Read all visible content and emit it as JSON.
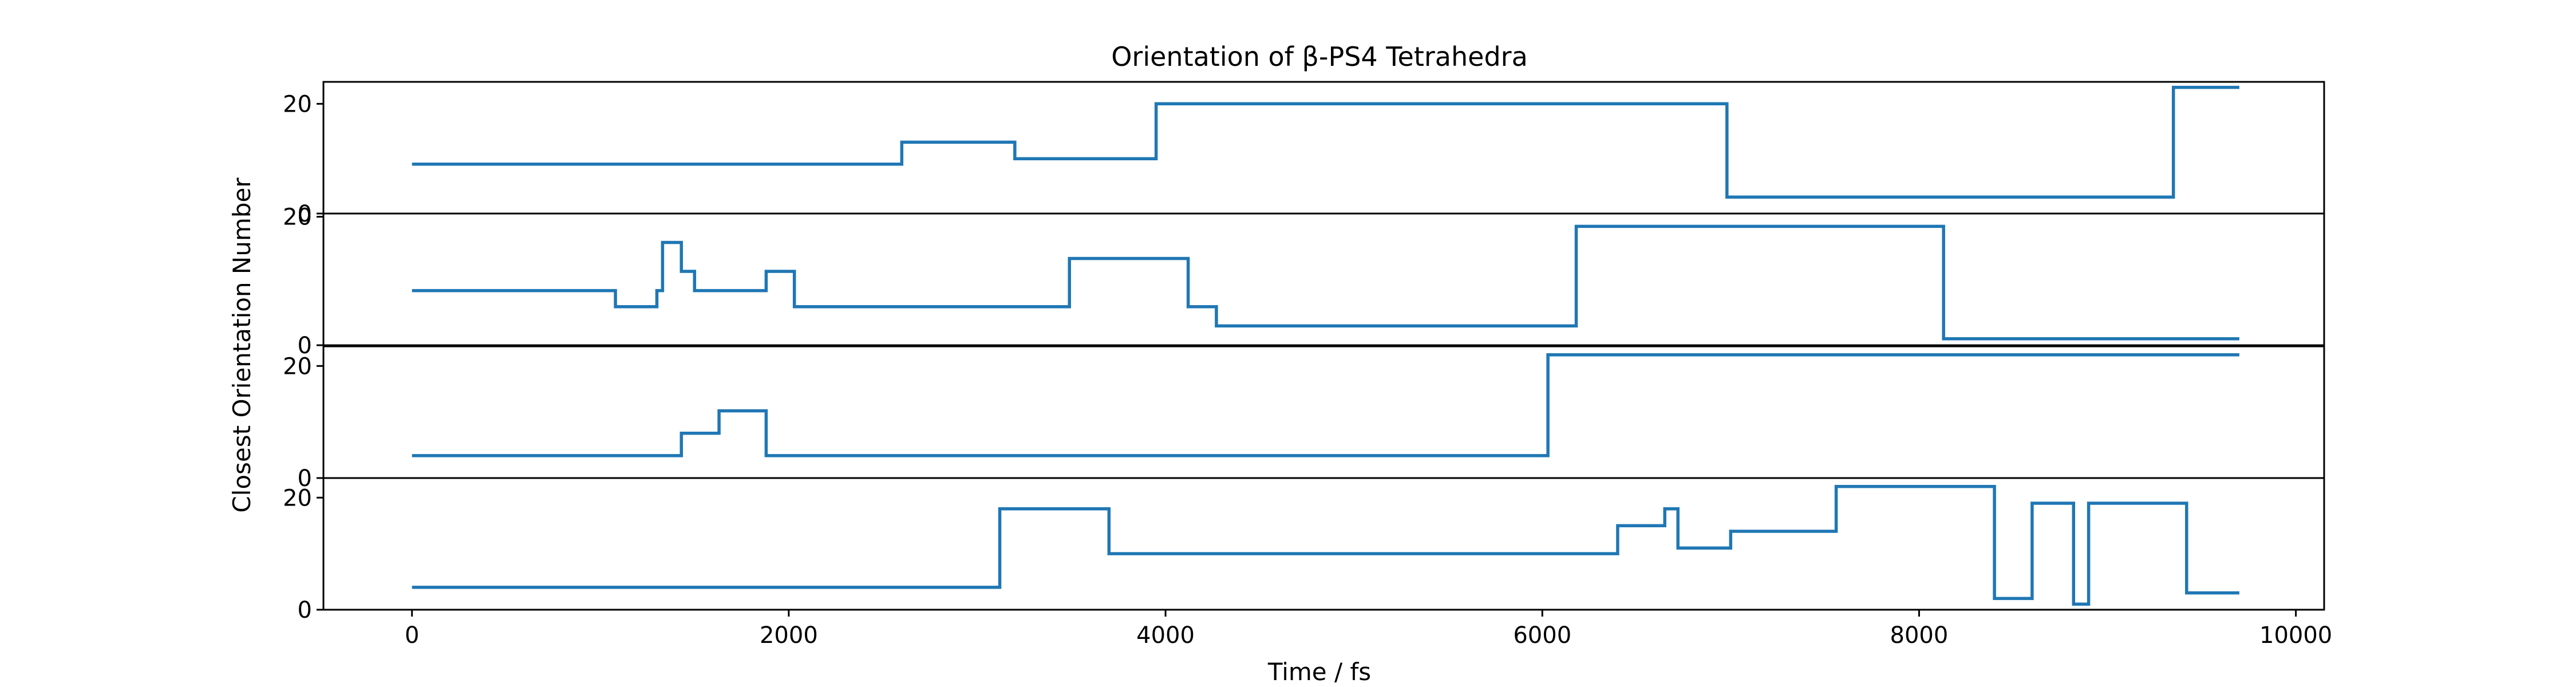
{
  "chart_data": {
    "type": "line",
    "title": "Orientation of β-PS4 Tetrahedra",
    "xlabel": "Time / fs",
    "ylabel": "Closest Orientation Number",
    "xlim": [
      -470,
      10150
    ],
    "x_ticks": [
      0,
      2000,
      4000,
      6000,
      8000,
      10000
    ],
    "y_ticks": [
      0,
      20
    ],
    "line_color": "#1f77b4",
    "drawstyle": "steps-post",
    "subplots": [
      {
        "name": "panel-1",
        "ylim": [
          0,
          24
        ],
        "points": [
          [
            0,
            9
          ],
          [
            2600,
            13
          ],
          [
            3200,
            10
          ],
          [
            3950,
            20
          ],
          [
            6980,
            3
          ],
          [
            9350,
            23
          ],
          [
            9700,
            23
          ]
        ]
      },
      {
        "name": "panel-2",
        "ylim": [
          0,
          20.5
        ],
        "points": [
          [
            0,
            8.5
          ],
          [
            1080,
            6
          ],
          [
            1300,
            8.5
          ],
          [
            1330,
            16
          ],
          [
            1430,
            11.5
          ],
          [
            1500,
            8.5
          ],
          [
            1880,
            11.5
          ],
          [
            2030,
            6
          ],
          [
            3490,
            13.5
          ],
          [
            4120,
            6
          ],
          [
            4270,
            3
          ],
          [
            6180,
            18.5
          ],
          [
            8130,
            1
          ],
          [
            9700,
            1
          ]
        ]
      },
      {
        "name": "panel-3",
        "ylim": [
          0,
          23.5
        ],
        "points": [
          [
            0,
            4
          ],
          [
            1430,
            8
          ],
          [
            1630,
            12
          ],
          [
            1880,
            4
          ],
          [
            6030,
            22
          ],
          [
            9700,
            22
          ]
        ]
      },
      {
        "name": "panel-4",
        "ylim": [
          0,
          23.5
        ],
        "points": [
          [
            0,
            4
          ],
          [
            3120,
            18
          ],
          [
            3700,
            10
          ],
          [
            6400,
            15
          ],
          [
            6650,
            18
          ],
          [
            6720,
            11
          ],
          [
            7000,
            14
          ],
          [
            7560,
            22
          ],
          [
            8400,
            2
          ],
          [
            8600,
            19
          ],
          [
            8820,
            1
          ],
          [
            8900,
            19
          ],
          [
            9420,
            3
          ],
          [
            9700,
            3
          ]
        ]
      }
    ]
  }
}
